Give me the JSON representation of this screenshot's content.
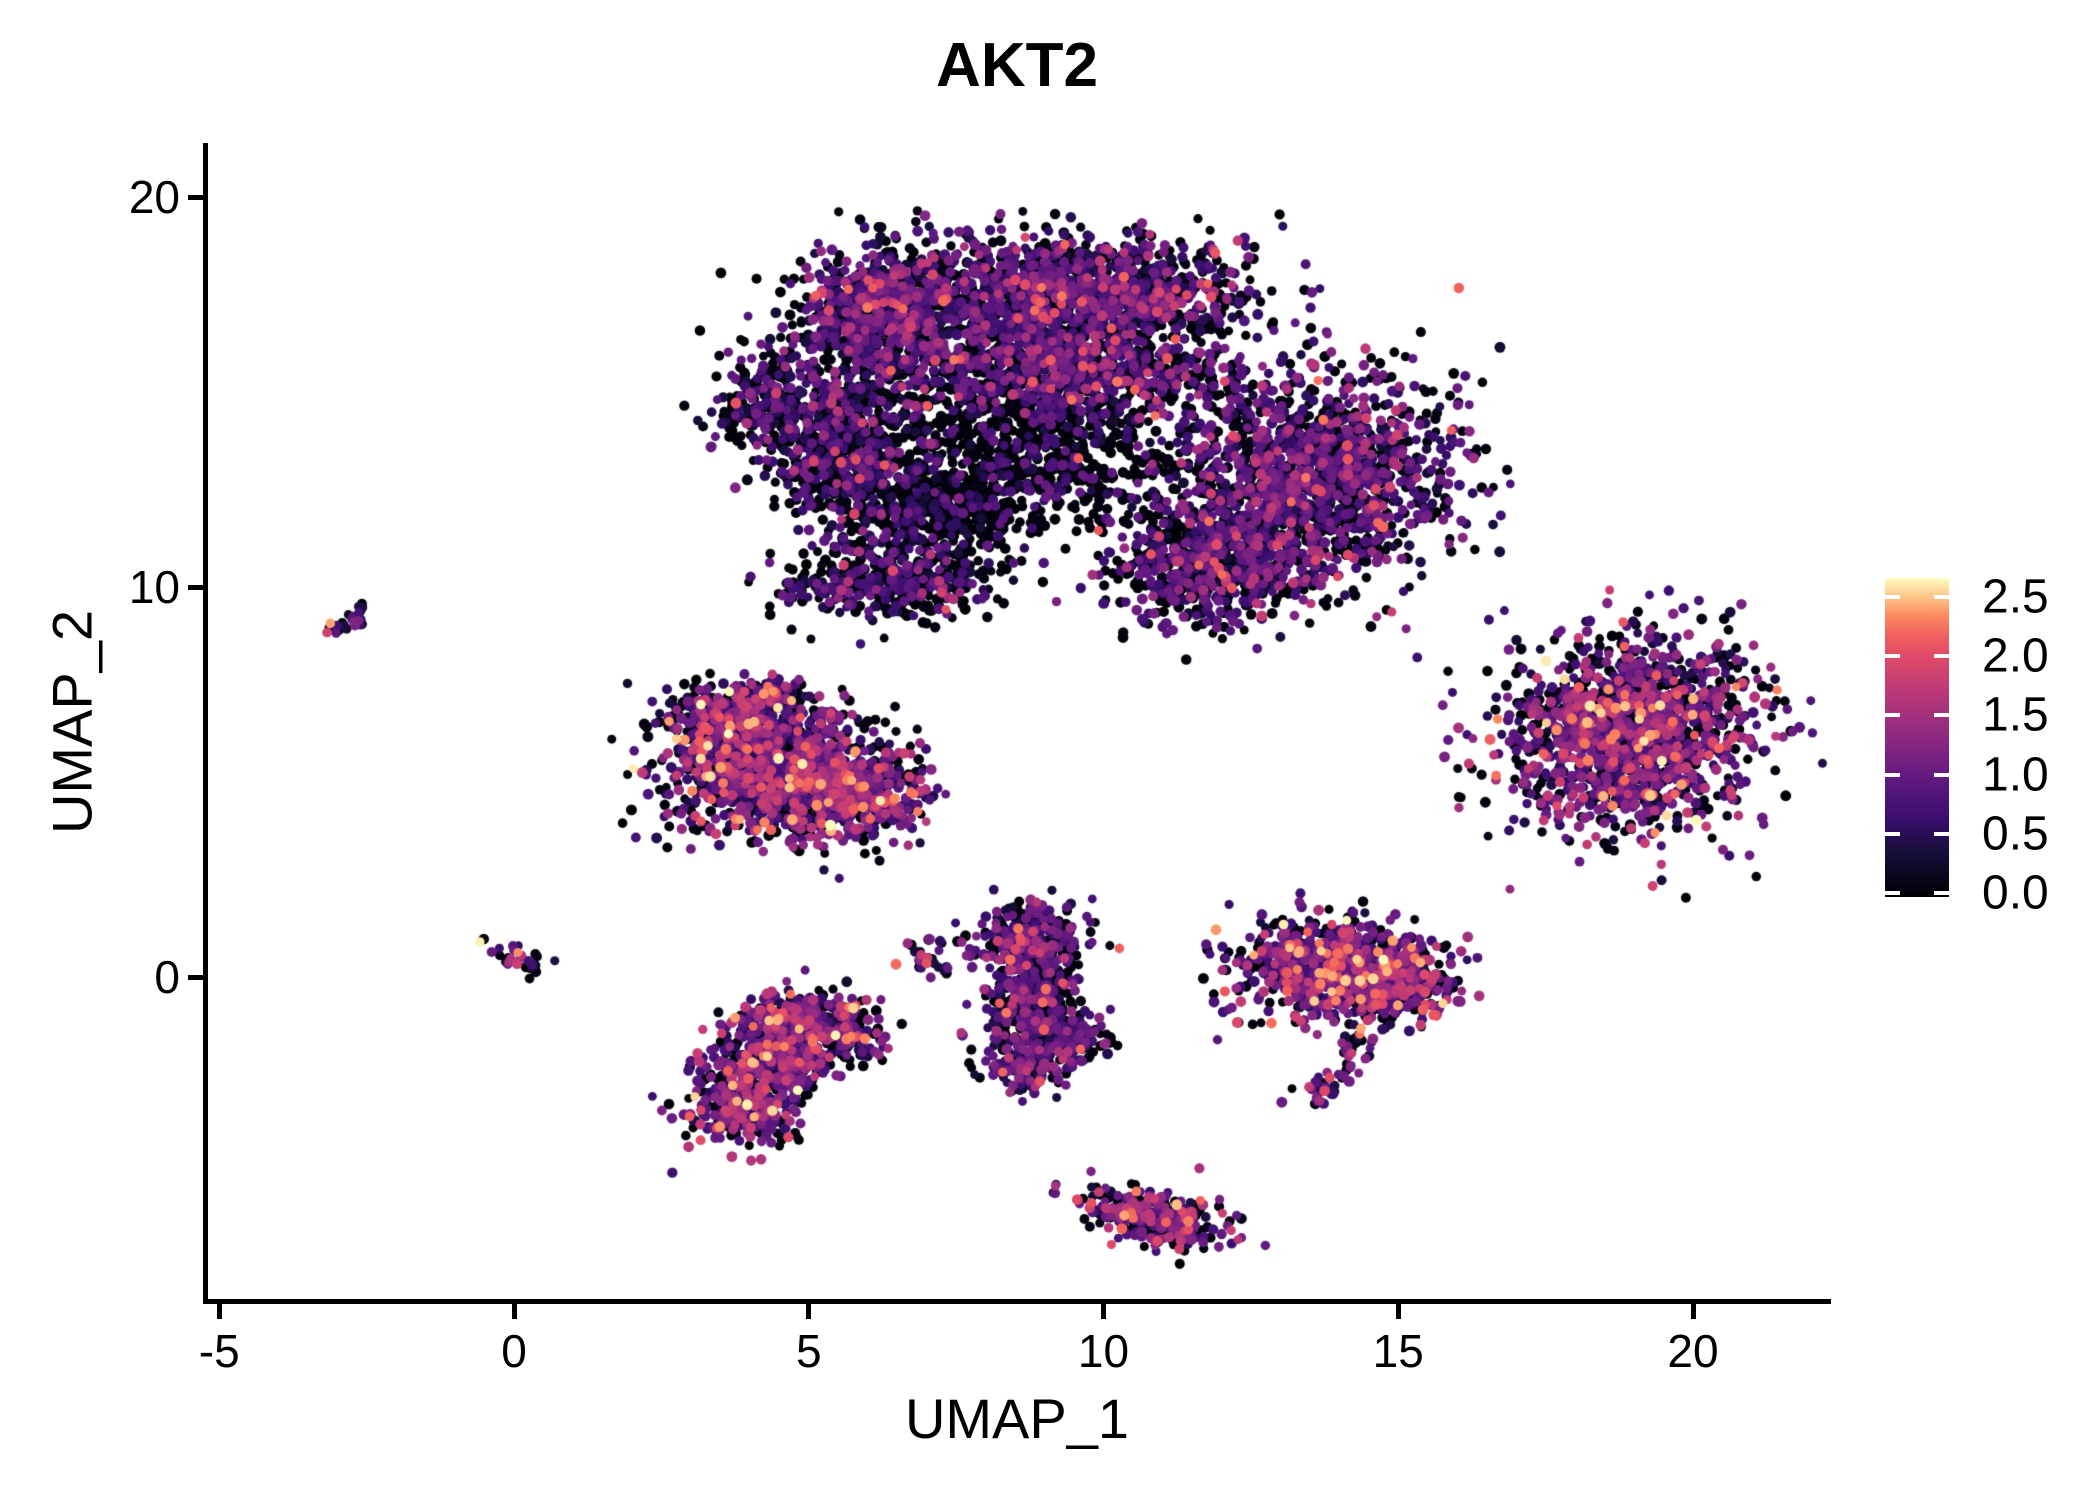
{
  "title": "AKT2",
  "axes": {
    "x": {
      "label": "UMAP_1",
      "ticks": [
        {
          "label": "-5",
          "value": -5
        },
        {
          "label": "0",
          "value": 0
        },
        {
          "label": "5",
          "value": 5
        },
        {
          "label": "10",
          "value": 10
        },
        {
          "label": "15",
          "value": 15
        },
        {
          "label": "20",
          "value": 20
        }
      ],
      "range": [
        -5.2,
        22.3
      ]
    },
    "y": {
      "label": "UMAP_2",
      "ticks": [
        {
          "label": "20",
          "value": 20
        },
        {
          "label": "10",
          "value": 10
        },
        {
          "label": "0",
          "value": 0
        }
      ],
      "range": [
        -8.3,
        21.4
      ]
    }
  },
  "legend": {
    "tick_labels": [
      "2.5",
      "2.0",
      "1.5",
      "1.0",
      "0.5",
      "0.0"
    ],
    "tick_values": [
      2.5,
      2.0,
      1.5,
      1.0,
      0.5,
      0.0
    ],
    "vmin": 0.0,
    "vmax": 2.66,
    "colormap_name": "magma",
    "colormap_stops": [
      [
        0.0,
        "#000004"
      ],
      [
        0.13,
        "#140e36"
      ],
      [
        0.25,
        "#3b0f70"
      ],
      [
        0.38,
        "#641a80"
      ],
      [
        0.5,
        "#8c2981"
      ],
      [
        0.63,
        "#b73779"
      ],
      [
        0.75,
        "#de4968"
      ],
      [
        0.82,
        "#f1605d"
      ],
      [
        0.88,
        "#fb8861"
      ],
      [
        0.94,
        "#fec287"
      ],
      [
        1.0,
        "#fcfdbf"
      ]
    ]
  },
  "chart_data": {
    "type": "scatter",
    "title": "AKT2",
    "xlabel": "UMAP_1",
    "ylabel": "UMAP_2",
    "xlim": [
      -5.2,
      22.3
    ],
    "ylim": [
      -8.3,
      21.4
    ],
    "color_value_range": [
      0.0,
      2.66
    ],
    "expression_profiles": {
      "vlow": [
        [
          0.78,
          0.0,
          0.1
        ],
        [
          0.12,
          0.3,
          0.7
        ],
        [
          0.1,
          0.7,
          1.1
        ]
      ],
      "low": [
        [
          0.55,
          0.0,
          0.12
        ],
        [
          0.2,
          0.3,
          0.7
        ],
        [
          0.2,
          0.65,
          1.15
        ],
        [
          0.04,
          1.2,
          1.7
        ],
        [
          0.01,
          1.8,
          2.2
        ]
      ],
      "mid": [
        [
          0.44,
          0.0,
          0.12
        ],
        [
          0.17,
          0.3,
          0.7
        ],
        [
          0.29,
          0.65,
          1.2
        ],
        [
          0.08,
          1.2,
          1.75
        ],
        [
          0.02,
          1.8,
          2.3
        ]
      ],
      "high": [
        [
          0.33,
          0.0,
          0.12
        ],
        [
          0.14,
          0.3,
          0.7
        ],
        [
          0.31,
          0.65,
          1.25
        ],
        [
          0.16,
          1.25,
          1.85
        ],
        [
          0.05,
          1.85,
          2.45
        ],
        [
          0.01,
          2.45,
          2.66
        ]
      ]
    },
    "clusters": [
      {
        "name": "main-top-left-lobe",
        "profile": "mid",
        "blobs": [
          {
            "cx": 6.3,
            "cy": 17.2,
            "rx": 1.3,
            "ry": 1.5,
            "rot": -20,
            "n": 750
          }
        ]
      },
      {
        "name": "main-top-band",
        "profile": "mid",
        "blobs": [
          {
            "cx": 9.6,
            "cy": 17.5,
            "rx": 2.6,
            "ry": 1.3,
            "rot": 0,
            "n": 1350
          },
          {
            "cx": 9.0,
            "cy": 15.6,
            "rx": 3.2,
            "ry": 1.1,
            "rot": -5,
            "n": 1000
          }
        ]
      },
      {
        "name": "main-left-column",
        "profile": "low",
        "blobs": [
          {
            "cx": 5.6,
            "cy": 13.5,
            "rx": 1.1,
            "ry": 2.1,
            "rot": 12,
            "n": 700
          },
          {
            "cx": 4.2,
            "cy": 14.7,
            "rx": 0.75,
            "ry": 1.1,
            "rot": 0,
            "n": 180
          }
        ]
      },
      {
        "name": "main-central-sparse",
        "profile": "vlow",
        "blobs": [
          {
            "cx": 8.7,
            "cy": 13.6,
            "rx": 2.4,
            "ry": 1.9,
            "rot": 0,
            "n": 900
          },
          {
            "cx": 7.3,
            "cy": 11.8,
            "rx": 1.2,
            "ry": 1.0,
            "rot": 0,
            "n": 350
          }
        ]
      },
      {
        "name": "main-right-lobe",
        "profile": "mid",
        "blobs": [
          {
            "cx": 13.6,
            "cy": 12.8,
            "rx": 2.0,
            "ry": 2.4,
            "rot": -20,
            "n": 1500
          }
        ]
      },
      {
        "name": "main-bottom-lobe",
        "profile": "mid",
        "blobs": [
          {
            "cx": 11.9,
            "cy": 10.6,
            "rx": 1.5,
            "ry": 1.2,
            "rot": 0,
            "n": 650
          }
        ]
      },
      {
        "name": "main-bottom-left-fringe",
        "profile": "low",
        "blobs": [
          {
            "cx": 6.4,
            "cy": 10.1,
            "rx": 1.7,
            "ry": 0.9,
            "rot": 8,
            "n": 420
          },
          {
            "cx": 11.3,
            "cy": 9.1,
            "rx": 1.2,
            "ry": 0.5,
            "rot": 0,
            "n": 25
          }
        ]
      },
      {
        "name": "left-small-dash",
        "profile": "high",
        "paths": [
          {
            "pts": [
              [
                -3.2,
                8.75
              ],
              [
                -2.55,
                9.45
              ]
            ],
            "width": 0.12,
            "n": 26
          }
        ]
      },
      {
        "name": "origin-small-dash",
        "profile": "high",
        "paths": [
          {
            "pts": [
              [
                -0.3,
                0.75
              ],
              [
                0.45,
                0.2
              ]
            ],
            "width": 0.14,
            "n": 28
          }
        ]
      },
      {
        "name": "mid-left-cluster",
        "profile": "high",
        "blobs": [
          {
            "cx": 4.5,
            "cy": 5.3,
            "rx": 1.7,
            "ry": 1.5,
            "rot": -15,
            "n": 1250
          },
          {
            "cx": 3.6,
            "cy": 6.7,
            "rx": 0.8,
            "ry": 0.75,
            "rot": 0,
            "n": 260
          },
          {
            "cx": 5.8,
            "cy": 4.6,
            "rx": 1.0,
            "ry": 0.9,
            "rot": 0,
            "n": 330
          },
          {
            "cx": 4.4,
            "cy": 7.3,
            "rx": 0.45,
            "ry": 0.35,
            "rot": 0,
            "n": 70
          }
        ]
      },
      {
        "name": "right-cluster",
        "profile": "high",
        "blobs": [
          {
            "cx": 19.0,
            "cy": 6.2,
            "rx": 1.85,
            "ry": 2.2,
            "rot": -15,
            "n": 1500
          }
        ]
      },
      {
        "name": "small-crescent-cluster",
        "profile": "high",
        "paths": [
          {
            "pts": [
              [
                7.1,
                1.2
              ],
              [
                6.9,
                0.8
              ],
              [
                6.85,
                0.5
              ],
              [
                7.0,
                0.25
              ],
              [
                7.3,
                0.1
              ]
            ],
            "width": 0.13,
            "n": 24
          }
        ],
        "blobs": [
          {
            "cx": 7.7,
            "cy": 0.6,
            "rx": 0.5,
            "ry": 0.5,
            "rot": 0,
            "n": 8
          }
        ]
      },
      {
        "name": "middle-vertical-cluster",
        "profile": "mid",
        "blobs": [
          {
            "cx": 8.85,
            "cy": 0.9,
            "rx": 0.85,
            "ry": 0.8,
            "rot": 0,
            "n": 300
          },
          {
            "cx": 8.75,
            "cy": -0.4,
            "rx": 0.7,
            "ry": 0.7,
            "rot": 0,
            "n": 240
          },
          {
            "cx": 9.1,
            "cy": -1.5,
            "rx": 0.85,
            "ry": 0.75,
            "rot": 0,
            "n": 260
          },
          {
            "cx": 8.65,
            "cy": -2.4,
            "rx": 0.55,
            "ry": 0.5,
            "rot": 0,
            "n": 120
          },
          {
            "cx": 8.8,
            "cy": 1.8,
            "rx": 0.3,
            "ry": 0.2,
            "rot": 0,
            "n": 12
          }
        ]
      },
      {
        "name": "lower-left-cluster",
        "profile": "high",
        "blobs": [
          {
            "cx": 4.9,
            "cy": -1.2,
            "rx": 1.05,
            "ry": 0.75,
            "rot": 0,
            "n": 420
          },
          {
            "cx": 4.4,
            "cy": -2.2,
            "rx": 0.95,
            "ry": 0.65,
            "rot": 0,
            "n": 300
          },
          {
            "cx": 3.9,
            "cy": -3.4,
            "rx": 0.85,
            "ry": 0.8,
            "rot": -20,
            "n": 300
          },
          {
            "cx": 5.9,
            "cy": -1.9,
            "rx": 0.3,
            "ry": 0.25,
            "rot": 0,
            "n": 15
          }
        ]
      },
      {
        "name": "right-middle-cluster",
        "profile": "high",
        "blobs": [
          {
            "cx": 13.9,
            "cy": 0.2,
            "rx": 1.5,
            "ry": 1.15,
            "rot": -5,
            "n": 800
          },
          {
            "cx": 15.1,
            "cy": 0.0,
            "rx": 0.8,
            "ry": 0.9,
            "rot": 0,
            "n": 250
          }
        ],
        "paths": [
          {
            "pts": [
              [
                14.35,
                -1.3
              ],
              [
                14.3,
                -1.9
              ],
              [
                14.1,
                -2.5
              ],
              [
                13.7,
                -2.9
              ],
              [
                13.3,
                -3.05
              ]
            ],
            "width": 0.15,
            "n": 55
          }
        ]
      },
      {
        "name": "bottom-cluster",
        "profile": "high",
        "blobs": [
          {
            "cx": 10.85,
            "cy": -6.15,
            "rx": 1.1,
            "ry": 0.6,
            "rot": -18,
            "n": 330
          }
        ]
      }
    ]
  }
}
